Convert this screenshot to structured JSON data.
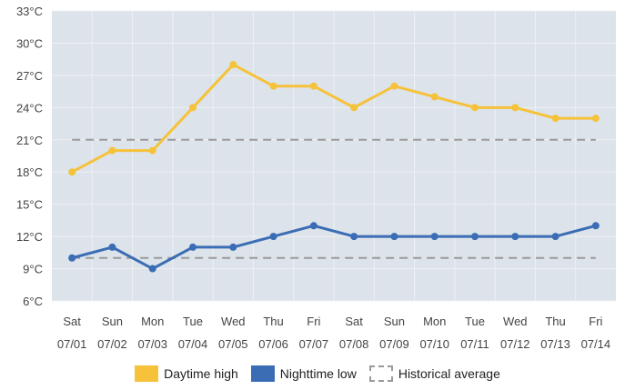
{
  "chart_data": {
    "type": "line",
    "title": "",
    "xlabel": "",
    "ylabel": "",
    "categories_day": [
      "Sat",
      "Sun",
      "Mon",
      "Tue",
      "Wed",
      "Thu",
      "Fri",
      "Sat",
      "Sun",
      "Mon",
      "Tue",
      "Wed",
      "Thu",
      "Fri"
    ],
    "categories_date": [
      "07/01",
      "07/02",
      "07/03",
      "07/04",
      "07/05",
      "07/06",
      "07/07",
      "07/08",
      "07/09",
      "07/10",
      "07/11",
      "07/12",
      "07/13",
      "07/14"
    ],
    "ylim": [
      6,
      33
    ],
    "yticks": [
      6,
      9,
      12,
      15,
      18,
      21,
      24,
      27,
      30,
      33
    ],
    "y_unit": "°C",
    "series": [
      {
        "name": "Daytime high",
        "color": "#F5C23A",
        "style": "solid",
        "values": [
          18,
          20,
          20,
          24,
          28,
          26,
          26,
          24,
          26,
          25,
          24,
          24,
          23,
          23
        ]
      },
      {
        "name": "Nighttime low",
        "color": "#3B6DB5",
        "style": "solid",
        "values": [
          10,
          11,
          9,
          11,
          11,
          12,
          13,
          12,
          12,
          12,
          12,
          12,
          12,
          13
        ]
      },
      {
        "name": "Historical average",
        "color": "#9A9A9A",
        "style": "dashed",
        "lines": [
          21,
          10
        ]
      }
    ],
    "legend_position": "bottom"
  }
}
